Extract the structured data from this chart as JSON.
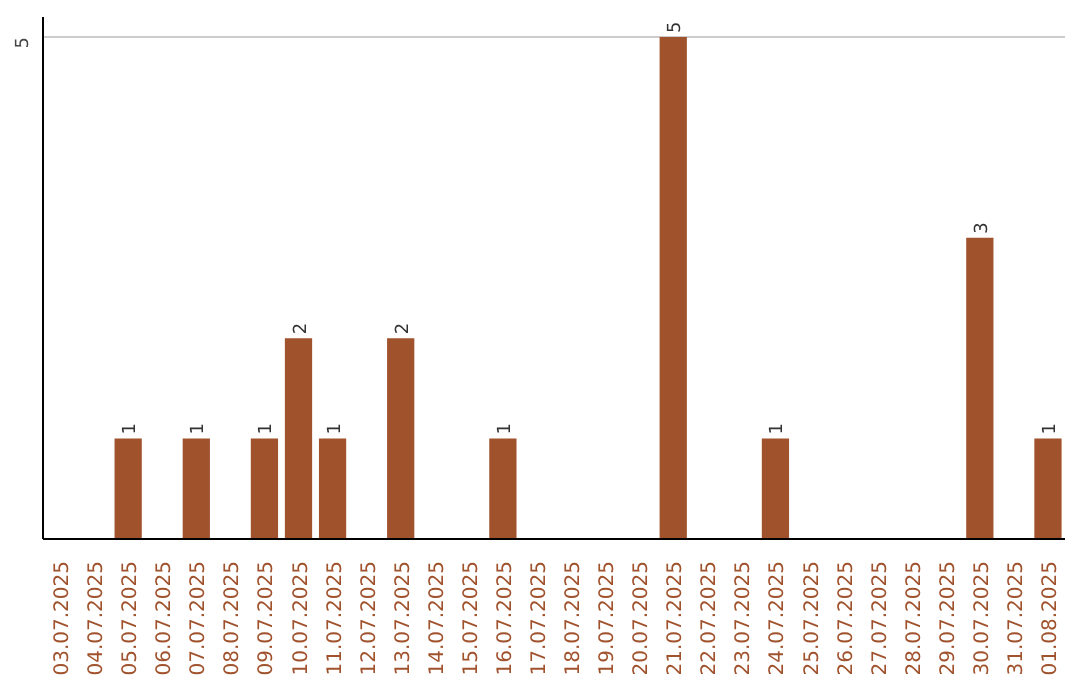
{
  "chart_data": {
    "type": "bar",
    "categories": [
      "03.07.2025",
      "04.07.2025",
      "05.07.2025",
      "06.07.2025",
      "07.07.2025",
      "08.07.2025",
      "09.07.2025",
      "10.07.2025",
      "11.07.2025",
      "12.07.2025",
      "13.07.2025",
      "14.07.2025",
      "15.07.2025",
      "16.07.2025",
      "17.07.2025",
      "18.07.2025",
      "19.07.2025",
      "20.07.2025",
      "21.07.2025",
      "22.07.2025",
      "23.07.2025",
      "24.07.2025",
      "25.07.2025",
      "26.07.2025",
      "27.07.2025",
      "28.07.2025",
      "29.07.2025",
      "30.07.2025",
      "31.07.2025",
      "01.08.2025"
    ],
    "values": [
      0,
      0,
      1,
      0,
      1,
      0,
      1,
      2,
      1,
      0,
      2,
      0,
      0,
      1,
      0,
      0,
      0,
      0,
      5,
      0,
      0,
      1,
      0,
      0,
      0,
      0,
      0,
      3,
      0,
      1
    ],
    "value_labels": [
      null,
      null,
      "1",
      null,
      "1",
      null,
      "1",
      "2",
      "1",
      null,
      "2",
      null,
      null,
      "1",
      null,
      null,
      null,
      null,
      "5",
      null,
      null,
      "1",
      null,
      null,
      null,
      null,
      null,
      "3",
      null,
      "1"
    ],
    "color": "#a0522d",
    "ylim": [
      0,
      5.2
    ],
    "yticks": [
      5
    ],
    "grid": "y"
  }
}
